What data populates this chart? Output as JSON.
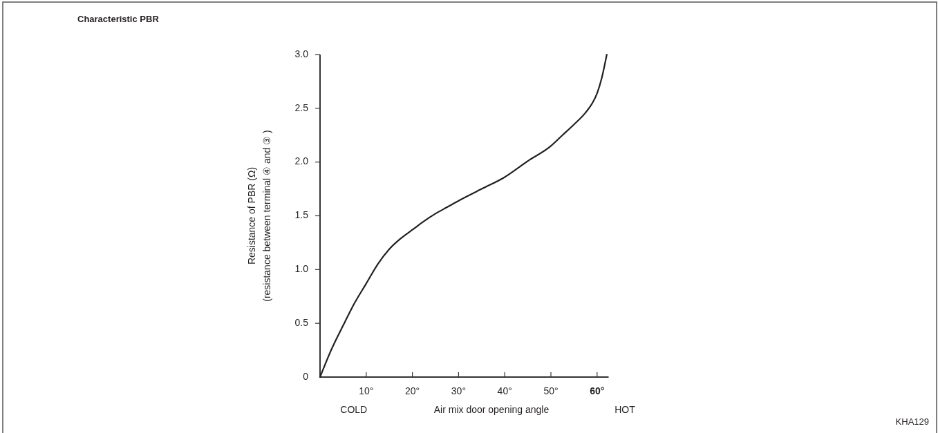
{
  "chart_data": {
    "type": "line",
    "title": "Characteristic PBR",
    "xlabel": "Air mix door opening angle",
    "ylabel": "Resistance of PBR (Ω)\n(resistance between terminal ④  and ③ )",
    "annotations": [
      "COLD",
      "HOT",
      "KHA129"
    ],
    "x": [
      0,
      2.5,
      5,
      7.5,
      10,
      12.5,
      15,
      17.5,
      20,
      22.5,
      25,
      27.5,
      30,
      35,
      40,
      45,
      50,
      52.5,
      55,
      57.5,
      59,
      60,
      61,
      62.1
    ],
    "series": [
      {
        "color": "#231f20",
        "values": [
          0,
          0.26,
          0.48,
          0.69,
          0.87,
          1.05,
          1.19,
          1.29,
          1.37,
          1.45,
          1.52,
          1.58,
          1.64,
          1.75,
          1.86,
          2.01,
          2.15,
          2.25,
          2.35,
          2.46,
          2.55,
          2.64,
          2.78,
          3.0
        ]
      }
    ],
    "xlim": [
      0,
      62.5
    ],
    "ylim": [
      0,
      3
    ],
    "xticks": [
      {
        "value": 10,
        "label": "10°"
      },
      {
        "value": 20,
        "label": "20°"
      },
      {
        "value": 30,
        "label": "30°"
      },
      {
        "value": 40,
        "label": "40°"
      },
      {
        "value": 50,
        "label": "50°"
      },
      {
        "value": 60,
        "label": "60°"
      }
    ],
    "yticks": [
      0,
      0.5,
      {
        "value": 1,
        "label": "1.0"
      },
      1.5,
      {
        "value": 2,
        "label": "2.0"
      },
      2.5,
      {
        "value": 3,
        "label": "3.0"
      }
    ]
  }
}
